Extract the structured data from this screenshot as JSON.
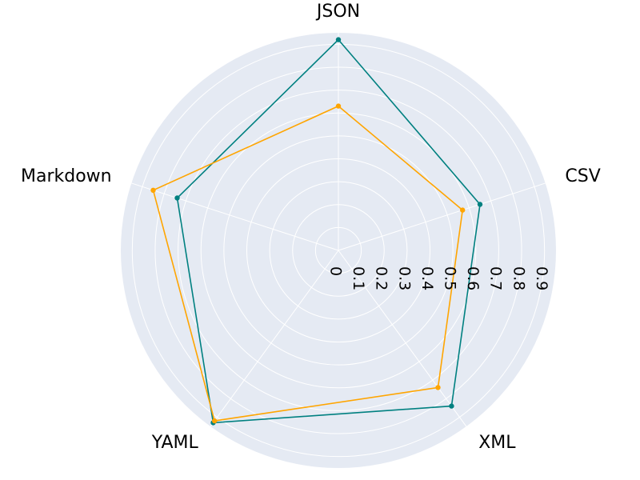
{
  "chart_data": {
    "type": "radar",
    "categories": [
      "JSON",
      "CSV",
      "XML",
      "YAML",
      "Markdown"
    ],
    "series": [
      {
        "color": "#008080",
        "values": [
          0.92,
          0.65,
          0.84,
          0.93,
          0.74
        ]
      },
      {
        "color": "#ffa500",
        "values": [
          0.63,
          0.57,
          0.74,
          0.92,
          0.85
        ]
      }
    ],
    "r_ticks": [
      "0",
      "0.1",
      "0.2",
      "0.3",
      "0.4",
      "0.5",
      "0.6",
      "0.7",
      "0.8",
      "0.9"
    ],
    "rlim": [
      0,
      0.95
    ],
    "background_color": "#e5eaf3",
    "grid": true
  }
}
